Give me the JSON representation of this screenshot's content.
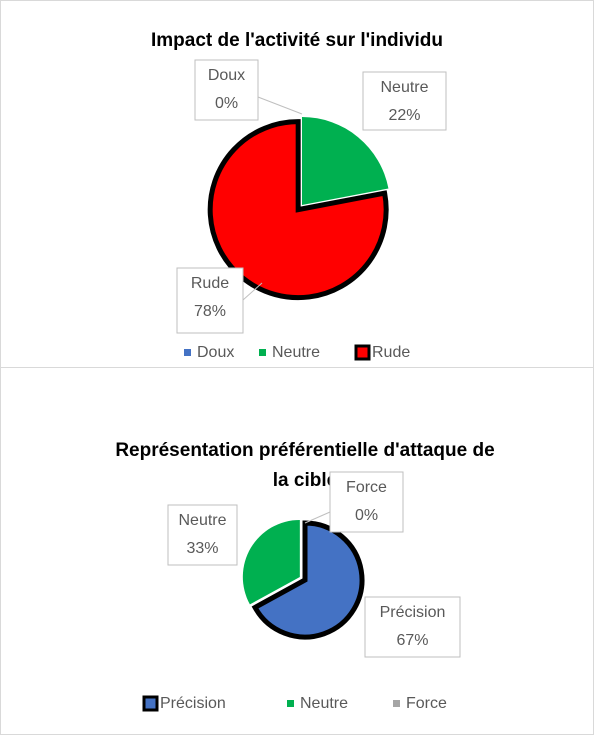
{
  "chart_data": [
    {
      "type": "pie",
      "title": "Impact de l'activité sur l'individu",
      "categories": [
        "Doux",
        "Neutre",
        "Rude"
      ],
      "values": [
        0,
        22,
        78
      ],
      "value_labels": [
        "0%",
        "22%",
        "78%"
      ],
      "colors": [
        "#4472c4",
        "#00b050",
        "#ff0000"
      ],
      "border_colors": [
        null,
        null,
        "#000000"
      ],
      "legend": "bottom"
    },
    {
      "type": "pie",
      "title": "Représentation préférentielle d'attaque de la cible",
      "categories": [
        "Précision",
        "Neutre",
        "Force"
      ],
      "values": [
        67,
        33,
        0
      ],
      "value_labels": [
        "67%",
        "33%",
        "0%"
      ],
      "colors": [
        "#4472c4",
        "#00b050",
        "#a5a5a5"
      ],
      "border_colors": [
        "#000000",
        null,
        null
      ],
      "legend": "bottom"
    }
  ]
}
